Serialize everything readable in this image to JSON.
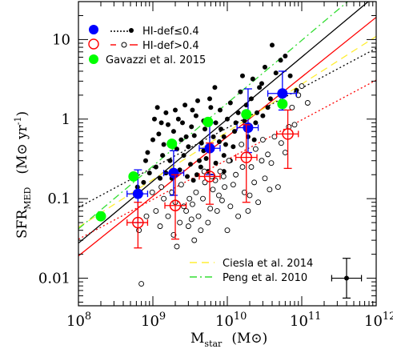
{
  "chart_data": {
    "type": "scatter",
    "xscale": "log",
    "yscale": "log",
    "xlim": [
      100000000.0,
      1000000000000.0
    ],
    "ylim": [
      0.0045,
      30
    ],
    "xticks": [
      {
        "value": 100000000.0,
        "label": "8"
      },
      {
        "value": 1000000000.0,
        "label": "9"
      },
      {
        "value": 10000000000.0,
        "label": "10"
      },
      {
        "value": 100000000000.0,
        "label": "11"
      },
      {
        "value": 1000000000000.0,
        "label": "12"
      }
    ],
    "xtick_base": "10",
    "yticks": [
      {
        "value": 0.01,
        "label": "0.01"
      },
      {
        "value": 0.1,
        "label": "0.1"
      },
      {
        "value": 1,
        "label": "1"
      },
      {
        "value": 10,
        "label": "10"
      }
    ],
    "xlabel_main": "M",
    "xlabel_sub": "star",
    "xlabel_unit": "(M⊙)",
    "ylabel_main": "SFR",
    "ylabel_sub": "MED",
    "ylabel_unit": "(M⊙ yr",
    "ylabel_unit_exp": "-1",
    "ylabel_unit_close": ")",
    "colors": {
      "blue": "#0000ff",
      "red": "#ff0000",
      "green": "#00ff00",
      "yellow": "#ffee33",
      "green_dash": "#33dd33",
      "black": "#000000"
    },
    "legend": {
      "blue_label": "HI-def≤0.4",
      "red_label": "HI-def>0.4",
      "green_label": "Gavazzi et al. 2015",
      "ciesla_label": "Ciesla et al. 2014",
      "peng_label": "Peng et al. 2010"
    },
    "typical_error": {
      "x": 400000000000.0,
      "y": 0.01,
      "dex_x": 0.2,
      "dex_y": 0.25
    },
    "series": [
      {
        "name": "HI-def≤0.4",
        "style": "filled-circle",
        "color": "#0000ff",
        "points": [
          {
            "x": 630000000.0,
            "y": 0.115,
            "xlo": 450000000.0,
            "xhi": 850000000.0,
            "ylo": 0.05,
            "yhi": 0.23
          },
          {
            "x": 1900000000.0,
            "y": 0.21,
            "xlo": 1400000000.0,
            "xhi": 2600000000.0,
            "ylo": 0.11,
            "yhi": 0.4
          },
          {
            "x": 5800000000.0,
            "y": 0.43,
            "xlo": 4200000000.0,
            "xhi": 8000000000.0,
            "ylo": 0.2,
            "yhi": 0.9
          },
          {
            "x": 19000000000.0,
            "y": 0.78,
            "xlo": 13500000000.0,
            "xhi": 26000000000.0,
            "ylo": 0.38,
            "yhi": 2.4
          },
          {
            "x": 55000000000.0,
            "y": 2.1,
            "xlo": 35000000000.0,
            "xhi": 85000000000.0,
            "ylo": 1.3,
            "yhi": 4.0
          }
        ]
      },
      {
        "name": "HI-def>0.4",
        "style": "open-circle",
        "color": "#ff0000",
        "points": [
          {
            "x": 630000000.0,
            "y": 0.05,
            "xlo": 450000000.0,
            "xhi": 850000000.0,
            "ylo": 0.024,
            "yhi": 0.09
          },
          {
            "x": 2000000000.0,
            "y": 0.082,
            "xlo": 1450000000.0,
            "xhi": 2800000000.0,
            "ylo": 0.031,
            "yhi": 0.2
          },
          {
            "x": 5800000000.0,
            "y": 0.19,
            "xlo": 4200000000.0,
            "xhi": 8000000000.0,
            "ylo": 0.085,
            "yhi": 0.5
          },
          {
            "x": 18000000000.0,
            "y": 0.33,
            "xlo": 13000000000.0,
            "xhi": 25000000000.0,
            "ylo": 0.09,
            "yhi": 0.85
          },
          {
            "x": 65000000000.0,
            "y": 0.65,
            "xlo": 46000000000.0,
            "xhi": 90000000000.0,
            "ylo": 0.24,
            "yhi": 1.3
          }
        ]
      },
      {
        "name": "Gavazzi et al. 2015",
        "style": "filled-circle",
        "color": "#00ff00",
        "points": [
          {
            "x": 200000000.0,
            "y": 0.06
          },
          {
            "x": 550000000.0,
            "y": 0.19
          },
          {
            "x": 1800000000.0,
            "y": 0.49
          },
          {
            "x": 5500000000.0,
            "y": 0.92
          },
          {
            "x": 18000000000.0,
            "y": 1.15
          },
          {
            "x": 55000000000.0,
            "y": 1.55
          }
        ]
      },
      {
        "name": "HI-def≤0.4 galaxies",
        "style": "small-filled",
        "color": "#000000",
        "points": [
          [
            1300000000.0,
            0.9
          ],
          [
            1500000000.0,
            1.2
          ],
          [
            1900000000.0,
            0.7
          ],
          [
            2200000000.0,
            1.0
          ],
          [
            2800000000.0,
            0.6
          ],
          [
            3300000000.0,
            0.8
          ],
          [
            3800000000.0,
            1.1
          ],
          [
            4500000000.0,
            0.5
          ],
          [
            5000000000.0,
            0.75
          ],
          [
            6000000000.0,
            1.4
          ],
          [
            7000000000.0,
            0.9
          ],
          [
            8000000000.0,
            1.3
          ],
          [
            9000000000.0,
            0.6
          ],
          [
            11000000000.0,
            1.6
          ],
          [
            13000000000.0,
            0.9
          ],
          [
            15000000000.0,
            2.2
          ],
          [
            18000000000.0,
            1.5
          ],
          [
            22000000000.0,
            3.2
          ],
          [
            27000000000.0,
            2.5
          ],
          [
            32000000000.0,
            4.5
          ],
          [
            38000000000.0,
            1.8
          ],
          [
            45000000000.0,
            3.8
          ],
          [
            52000000000.0,
            5.5
          ],
          [
            60000000000.0,
            6.2
          ],
          [
            40000000000.0,
            8.5
          ],
          [
            25000000000.0,
            1.2
          ],
          [
            12000000000.0,
            0.45
          ],
          [
            9000000000.0,
            0.35
          ],
          [
            7000000000.0,
            0.28
          ],
          [
            5500000000.0,
            0.22
          ],
          [
            4200000000.0,
            0.3
          ],
          [
            3200000000.0,
            0.27
          ],
          [
            2600000000.0,
            0.35
          ],
          [
            2100000000.0,
            0.42
          ],
          [
            1700000000.0,
            0.3
          ],
          [
            1350000000.0,
            0.35
          ],
          [
            1100000000.0,
            0.25
          ],
          [
            900000000.0,
            0.21
          ],
          [
            750000000.0,
            0.16
          ],
          [
            620000000.0,
            0.14
          ],
          [
            850000000.0,
            0.38
          ],
          [
            1000000000.0,
            0.55
          ],
          [
            1200000000.0,
            0.65
          ],
          [
            1400000000.0,
            0.48
          ],
          [
            1600000000.0,
            0.85
          ],
          [
            2400000000.0,
            0.55
          ],
          [
            3000000000.0,
            0.45
          ],
          [
            3600000000.0,
            0.62
          ],
          [
            4800000000.0,
            0.4
          ],
          [
            6500000000.0,
            0.6
          ],
          [
            8200000000.0,
            0.75
          ],
          [
            10000000000.0,
            1.0
          ],
          [
            14000000000.0,
            1.2
          ],
          [
            17000000000.0,
            0.95
          ],
          [
            21000000000.0,
            1.8
          ],
          [
            29000000000.0,
            2.8
          ],
          [
            35000000000.0,
            1.4
          ],
          [
            16000000000.0,
            3.5
          ],
          [
            6800000000.0,
            2.5
          ],
          [
            4000000000.0,
            1.7
          ],
          [
            2500000000.0,
            0.9
          ],
          [
            2000000000.0,
            1.3
          ],
          [
            1050000000.0,
            1.0
          ],
          [
            800000000.0,
            0.3
          ],
          [
            1250000000.0,
            0.18
          ],
          [
            1500000000.0,
            0.21
          ],
          [
            2300000000.0,
            0.23
          ],
          [
            2900000000.0,
            0.19
          ],
          [
            3500000000.0,
            0.17
          ],
          [
            4400000000.0,
            0.25
          ],
          [
            5200000000.0,
            0.32
          ],
          [
            6200000000.0,
            0.42
          ],
          [
            7800000000.0,
            0.52
          ],
          [
            9500000000.0,
            0.48
          ],
          [
            12500000000.0,
            0.7
          ],
          [
            19000000000.0,
            0.6
          ],
          [
            24000000000.0,
            0.9
          ],
          [
            30000000000.0,
            1.1
          ],
          [
            85000000000.0,
            2.3
          ],
          [
            70000000000.0,
            3.5
          ],
          [
            4800000000.0,
            0.95
          ],
          [
            3400000000.0,
            1.3
          ],
          [
            2700000000.0,
            1.5
          ],
          [
            5800000000.0,
            1.8
          ],
          [
            1150000000.0,
            1.4
          ],
          [
            1800000000.0,
            0.18
          ],
          [
            3900000000.0,
            0.2
          ],
          [
            9000000000.0,
            0.22
          ],
          [
            11000000000.0,
            0.3
          ],
          [
            23000000000.0,
            0.55
          ]
        ]
      },
      {
        "name": "HI-def>0.4 galaxies",
        "style": "small-open",
        "color": "#000000",
        "points": [
          [
            700000000.0,
            0.0085
          ],
          [
            650000000.0,
            0.04
          ],
          [
            1100000000.0,
            0.07
          ],
          [
            1400000000.0,
            0.1
          ],
          [
            1900000000.0,
            0.035
          ],
          [
            2300000000.0,
            0.05
          ],
          [
            2600000000.0,
            0.08
          ],
          [
            3000000000.0,
            0.045
          ],
          [
            3600000000.0,
            0.03
          ],
          [
            4100000000.0,
            0.06
          ],
          [
            4700000000.0,
            0.1
          ],
          [
            5500000000.0,
            0.05
          ],
          [
            6400000000.0,
            0.13
          ],
          [
            7300000000.0,
            0.07
          ],
          [
            8500000000.0,
            0.095
          ],
          [
            10000000000.0,
            0.04
          ],
          [
            12000000000.0,
            0.15
          ],
          [
            14000000000.0,
            0.06
          ],
          [
            17000000000.0,
            0.12
          ],
          [
            21000000000.0,
            0.25
          ],
          [
            26000000000.0,
            0.09
          ],
          [
            32000000000.0,
            0.18
          ],
          [
            39000000000.0,
            0.28
          ],
          [
            48000000000.0,
            0.14
          ],
          [
            60000000000.0,
            0.38
          ],
          [
            80000000000.0,
            0.85
          ],
          [
            90000000000.0,
            2.0
          ],
          [
            100000000000.0,
            2.6
          ],
          [
            74000000000.0,
            1.4
          ],
          [
            30000000000.0,
            0.55
          ],
          [
            24000000000.0,
            0.42
          ],
          [
            15500000000.0,
            0.48
          ],
          [
            10500000000.0,
            0.3
          ],
          [
            8000000000.0,
            0.22
          ],
          [
            6200000000.0,
            0.19
          ],
          [
            5000000000.0,
            0.16
          ],
          [
            3800000000.0,
            0.12
          ],
          [
            3100000000.0,
            0.1
          ],
          [
            2400000000.0,
            0.15
          ],
          [
            1800000000.0,
            0.12
          ],
          [
            1300000000.0,
            0.14
          ],
          [
            1600000000.0,
            0.06
          ],
          [
            2100000000.0,
            0.025
          ],
          [
            2800000000.0,
            0.07
          ],
          [
            3400000000.0,
            0.085
          ],
          [
            4400000000.0,
            0.04
          ],
          [
            5900000000.0,
            0.075
          ],
          [
            7700000000.0,
            0.11
          ],
          [
            9200000000.0,
            0.14
          ],
          [
            11000000000.0,
            0.08
          ],
          [
            13000000000.0,
            0.2
          ],
          [
            19000000000.0,
            0.07
          ],
          [
            23000000000.0,
            0.16
          ],
          [
            29000000000.0,
            0.3
          ],
          [
            35000000000.0,
            0.36
          ],
          [
            43000000000.0,
            0.6
          ],
          [
            53000000000.0,
            0.5
          ],
          [
            67000000000.0,
            0.8
          ],
          [
            120000000000.0,
            1.6
          ],
          [
            980000000.0,
            0.12
          ],
          [
            820000000.0,
            0.06
          ],
          [
            1250000000.0,
            0.045
          ],
          [
            2000000000.0,
            0.09
          ],
          [
            3300000000.0,
            0.055
          ],
          [
            4900000000.0,
            0.22
          ],
          [
            6900000000.0,
            0.17
          ],
          [
            8900000000.0,
            0.19
          ],
          [
            16000000000.0,
            0.25
          ],
          [
            20000000000.0,
            0.11
          ],
          [
            37000000000.0,
            0.13
          ]
        ]
      }
    ],
    "lines": [
      {
        "name": "HI-def≤0.4 fit",
        "color": "#000000",
        "dash": "",
        "logA": 1.0,
        "slope": 0.78
      },
      {
        "name": "HI-def≤0.4 fit (dotted)",
        "color": "#000000",
        "dash": "2,3",
        "logA": 0.89,
        "slope": 0.5
      },
      {
        "name": "HI-def>0.4 fit",
        "color": "#ff0000",
        "dash": "",
        "logA": 0.78,
        "slope": 0.75
      },
      {
        "name": "HI-def>0.4 fit (dotted)",
        "color": "#ff0000",
        "dash": "2,3",
        "logA": 0.49,
        "slope": 0.5
      },
      {
        "name": "Ciesla et al. 2014",
        "color": "#ffee33",
        "dash": "9,6",
        "logA": 0.84,
        "slope": 0.6
      },
      {
        "name": "Peng et al. 2010",
        "color": "#33dd33",
        "dash": "9,4,2,4",
        "logA": 1.2,
        "slope": 0.79
      }
    ]
  }
}
